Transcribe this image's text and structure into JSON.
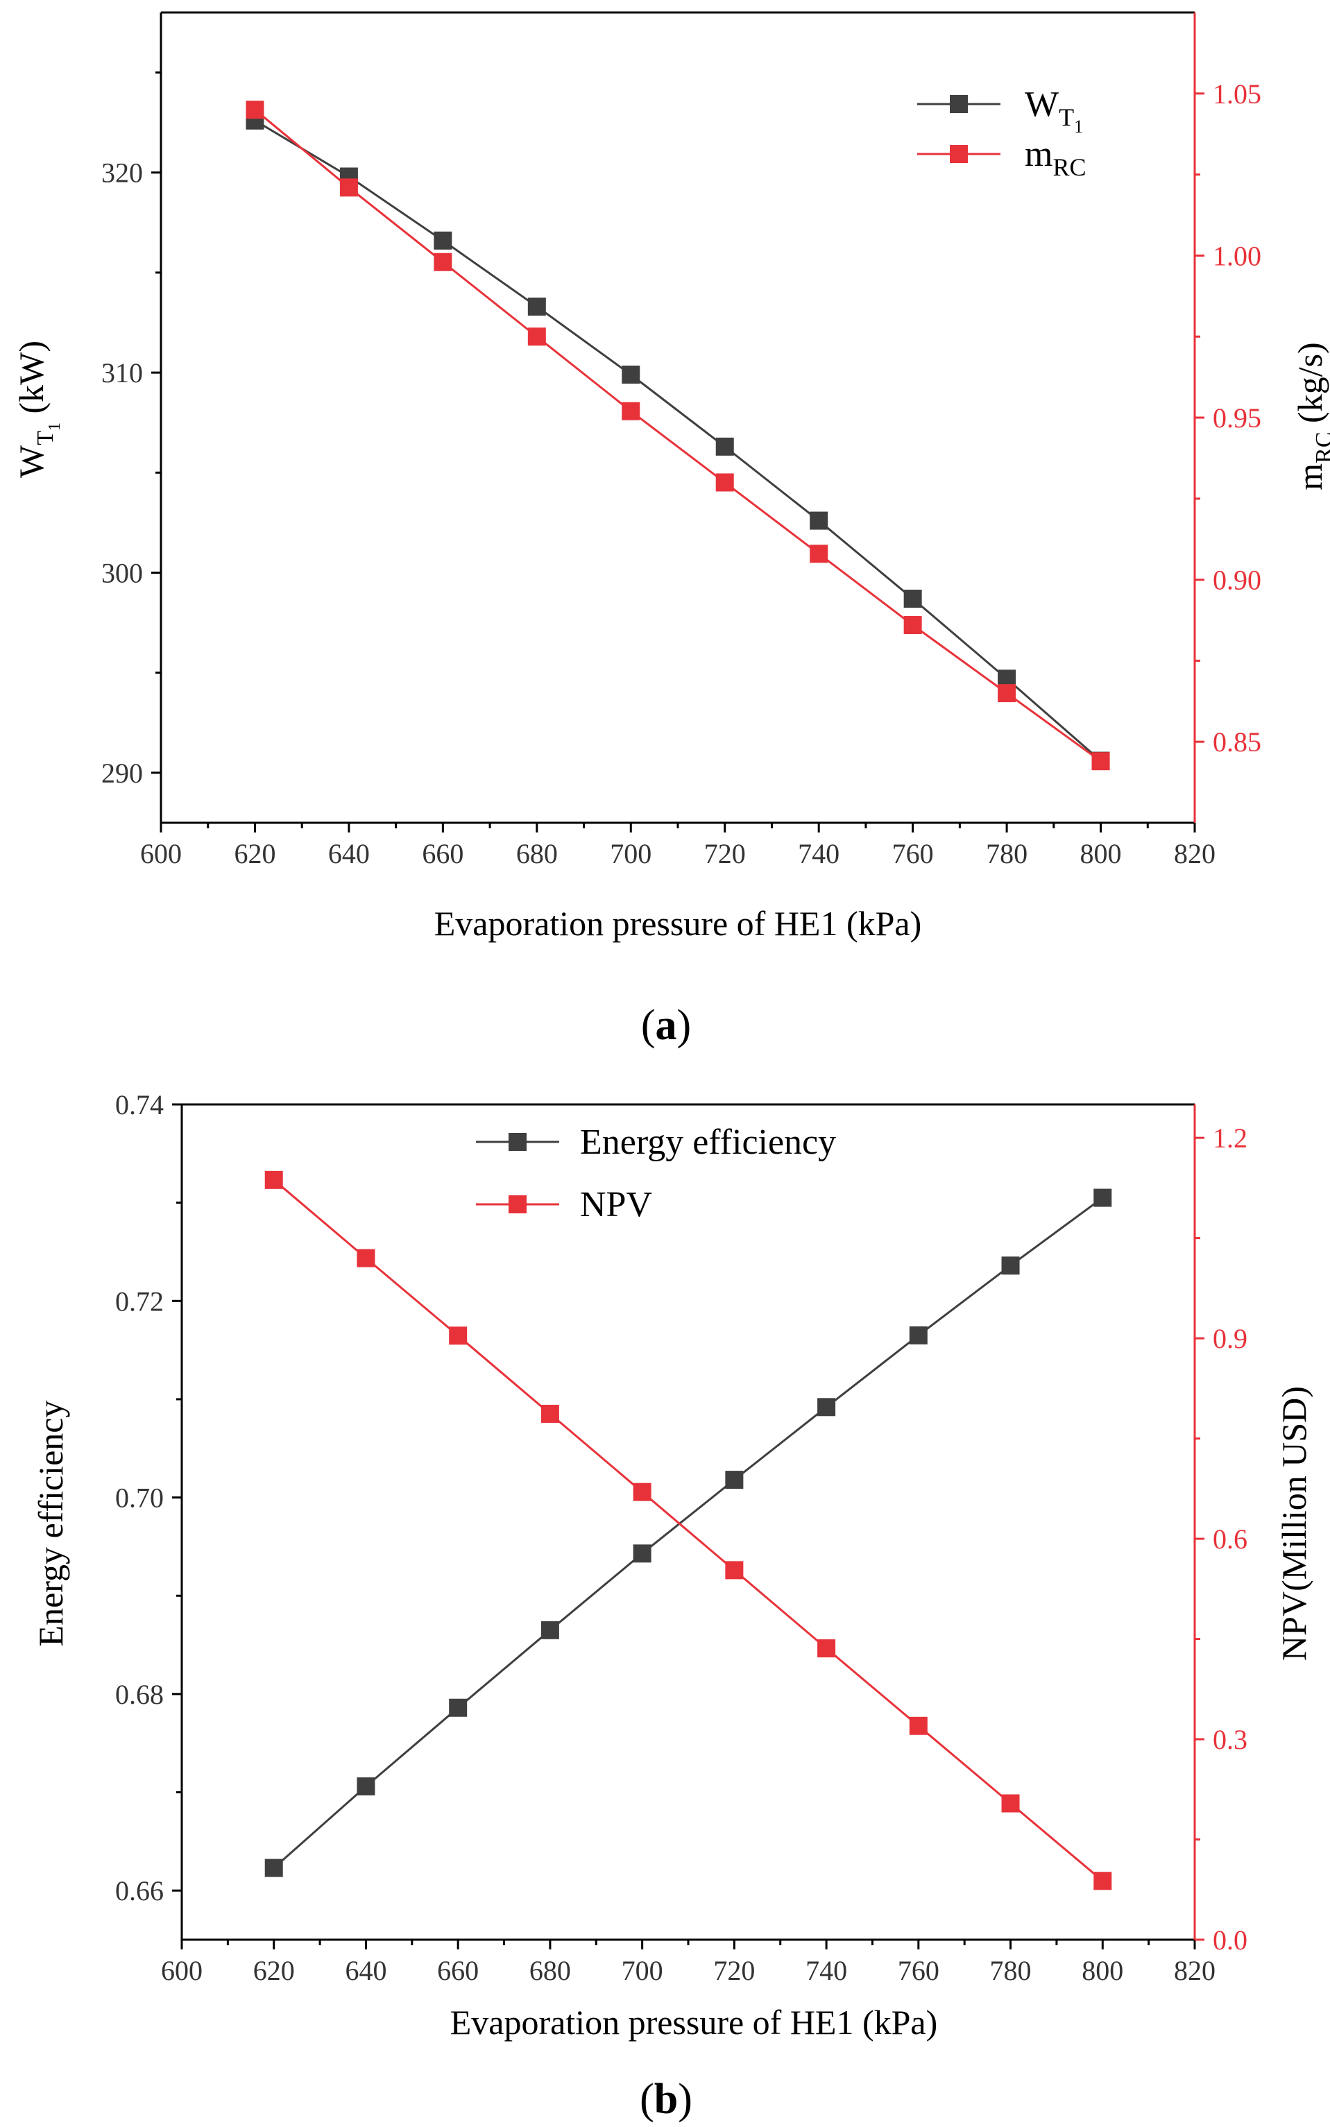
{
  "colors": {
    "series_dark": "#3f3f3f",
    "series_red": "#e8323a",
    "axis_right": "#e8323a"
  },
  "chart_data": [
    {
      "type": "line",
      "panel_label": "a",
      "xlabel": "Evaporation pressure of HE1 (kPa)",
      "ylabel_left": {
        "main": "W",
        "sub": "T",
        "subsub": "1",
        "unit": " (kW)"
      },
      "ylabel_right": {
        "main": "m",
        "sub": "RC",
        "unit": " (kg/s)"
      },
      "xlim": [
        600,
        820
      ],
      "xticks": [
        600,
        620,
        640,
        660,
        680,
        700,
        720,
        740,
        760,
        780,
        800,
        820
      ],
      "ylim_left": [
        287.5,
        328
      ],
      "yticks_left": [
        290,
        300,
        310,
        320
      ],
      "ylim_right": [
        0.825,
        1.075
      ],
      "yticks_right": [
        0.85,
        0.9,
        0.95,
        1.0,
        1.05
      ],
      "ytick_format_right": 2,
      "legend_position": "top-right",
      "series": [
        {
          "legend": {
            "main": "W",
            "sub": "T",
            "subsub": "1"
          },
          "axis": "left",
          "color": "#3f3f3f",
          "x": [
            620,
            640,
            660,
            680,
            700,
            720,
            740,
            760,
            780,
            800
          ],
          "values": [
            322.6,
            319.8,
            316.6,
            313.3,
            309.9,
            306.3,
            302.6,
            298.7,
            294.7,
            290.6
          ]
        },
        {
          "legend": {
            "main": "m",
            "sub": "RC"
          },
          "axis": "right",
          "color": "#e8323a",
          "x": [
            620,
            640,
            660,
            680,
            700,
            720,
            740,
            760,
            780,
            800
          ],
          "values": [
            1.045,
            1.021,
            0.998,
            0.975,
            0.952,
            0.93,
            0.908,
            0.886,
            0.865,
            0.844
          ]
        }
      ]
    },
    {
      "type": "line",
      "panel_label": "b",
      "xlabel": "Evaporation pressure of HE1 (kPa)",
      "ylabel_left": {
        "main": "Energy efficiency",
        "sub": "",
        "subsub": "",
        "unit": ""
      },
      "ylabel_right": {
        "main": "NPV(Million USD)",
        "sub": "",
        "unit": ""
      },
      "xlim": [
        600,
        820
      ],
      "xticks": [
        600,
        620,
        640,
        660,
        680,
        700,
        720,
        740,
        760,
        780,
        800,
        820
      ],
      "ylim_left": [
        0.655,
        0.74
      ],
      "yticks_left": [
        0.66,
        0.68,
        0.7,
        0.72,
        0.74
      ],
      "ytick_format_left": 2,
      "ylim_right": [
        0.0,
        1.25
      ],
      "yticks_right": [
        0.0,
        0.3,
        0.6,
        0.9,
        1.2
      ],
      "ytick_format_right": 1,
      "legend_position": "top-center",
      "series": [
        {
          "legend": {
            "main": "Energy efficiency",
            "sub": "",
            "subsub": ""
          },
          "axis": "left",
          "color": "#3f3f3f",
          "x": [
            620,
            640,
            660,
            680,
            700,
            720,
            740,
            760,
            780,
            800
          ],
          "values": [
            0.6623,
            0.6706,
            0.6786,
            0.6865,
            0.6943,
            0.7018,
            0.7092,
            0.7165,
            0.7236,
            0.7305
          ]
        },
        {
          "legend": {
            "main": "NPV",
            "sub": ""
          },
          "axis": "right",
          "color": "#e8323a",
          "x": [
            620,
            640,
            660,
            680,
            700,
            720,
            740,
            760,
            780,
            800
          ],
          "values": [
            1.137,
            1.02,
            0.904,
            0.787,
            0.67,
            0.553,
            0.436,
            0.32,
            0.204,
            0.088
          ]
        }
      ]
    }
  ]
}
